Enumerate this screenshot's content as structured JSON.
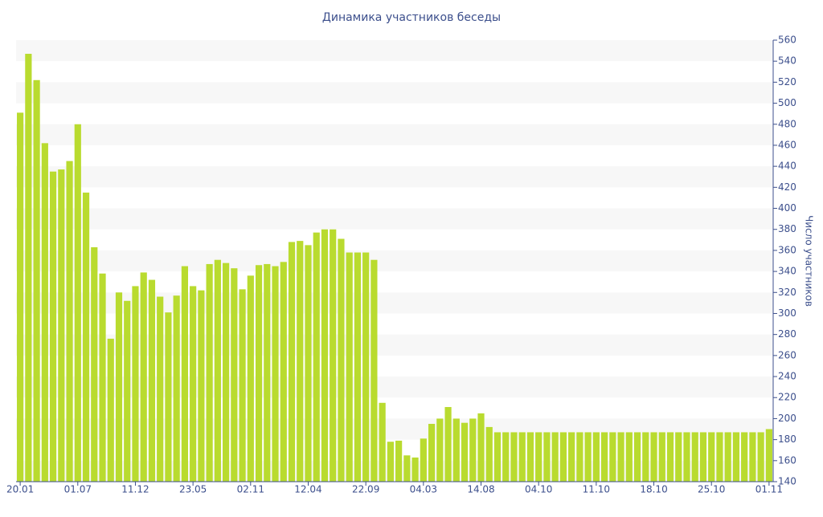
{
  "chart_data": {
    "type": "bar",
    "title": "Динамика участников беседы",
    "y_label": "Число участников",
    "color": "#b9db2f",
    "grid": true,
    "categories": [
      "20.01",
      null,
      null,
      null,
      null,
      null,
      null,
      "01.07",
      null,
      null,
      null,
      null,
      null,
      null,
      "11.12",
      null,
      null,
      null,
      null,
      null,
      null,
      "23.05",
      null,
      null,
      null,
      null,
      null,
      null,
      "02.11",
      null,
      null,
      null,
      null,
      null,
      null,
      "12.04",
      null,
      null,
      null,
      null,
      null,
      null,
      "22.09",
      null,
      null,
      null,
      null,
      null,
      null,
      "04.03",
      null,
      null,
      null,
      null,
      null,
      null,
      "14.08",
      null,
      null,
      null,
      null,
      null,
      null,
      "04.10",
      null,
      null,
      null,
      null,
      null,
      null,
      "11.10",
      null,
      null,
      null,
      null,
      null,
      null,
      "18.10",
      null,
      null,
      null,
      null,
      null,
      null,
      "25.10",
      null,
      null,
      null,
      null,
      null,
      null,
      "01.11"
    ],
    "values": [
      491,
      547,
      522,
      462,
      435,
      437,
      445,
      480,
      415,
      363,
      338,
      276,
      320,
      312,
      326,
      339,
      332,
      316,
      301,
      317,
      345,
      326,
      322,
      347,
      351,
      348,
      343,
      323,
      336,
      346,
      347,
      345,
      349,
      368,
      369,
      365,
      377,
      380,
      380,
      371,
      358,
      358,
      358,
      351,
      215,
      178,
      179,
      165,
      163,
      181,
      195,
      200,
      211,
      200,
      196,
      200,
      205,
      192,
      187,
      187,
      187,
      187,
      187,
      187,
      187,
      187,
      187,
      187,
      187,
      187,
      187,
      187,
      187,
      187,
      187,
      187,
      187,
      187,
      187,
      187,
      187,
      187,
      187,
      187,
      187,
      187,
      187,
      187,
      187,
      187,
      187,
      190
    ],
    "ylim": [
      140,
      560
    ],
    "yticks": [
      140,
      160,
      180,
      200,
      220,
      240,
      260,
      280,
      300,
      320,
      340,
      360,
      380,
      400,
      420,
      440,
      460,
      480,
      500,
      520,
      540,
      560
    ]
  }
}
